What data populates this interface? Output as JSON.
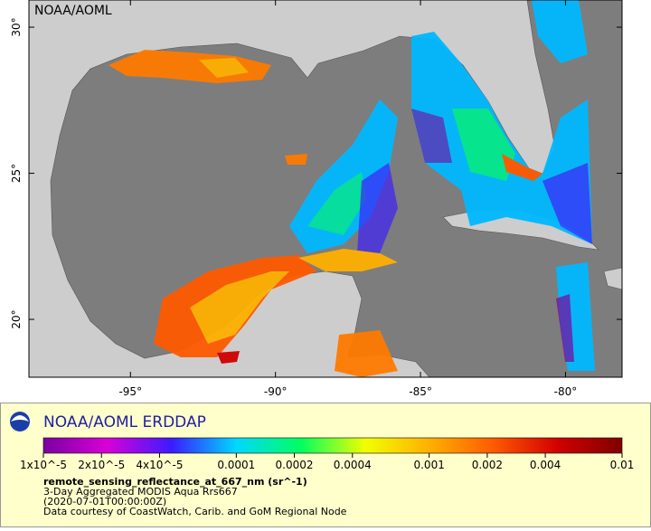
{
  "map": {
    "corner_label": "NOAA/AOML",
    "xlim": [
      -98.5,
      -78.05
    ],
    "ylim": [
      18.02,
      30.93
    ],
    "xticks": [
      {
        "value": -95,
        "label": "-95°"
      },
      {
        "value": -90,
        "label": "-90°"
      },
      {
        "value": -85,
        "label": "-85°"
      },
      {
        "value": -80,
        "label": "-80°"
      }
    ],
    "yticks": [
      {
        "value": 20,
        "label": "20°"
      },
      {
        "value": 25,
        "label": "25°"
      },
      {
        "value": 30,
        "label": "30°"
      }
    ]
  },
  "legend": {
    "brand": "NOAA/AOML ERDDAP",
    "colorbar": {
      "log_scale": true,
      "lim": [
        1e-05,
        0.01
      ],
      "colors": [
        "#7a00a0",
        "#d800d8",
        "#3a1cff",
        "#00d8ff",
        "#00ff60",
        "#f0ff00",
        "#ffb000",
        "#ff5a00",
        "#d00000",
        "#800000"
      ],
      "ticks": [
        {
          "value": 1e-05,
          "label": "1x10^-5"
        },
        {
          "value": 2e-05,
          "label": "2x10^-5"
        },
        {
          "value": 4e-05,
          "label": "4x10^-5"
        },
        {
          "value": 0.0001,
          "label": "0.0001"
        },
        {
          "value": 0.0002,
          "label": "0.0002"
        },
        {
          "value": 0.0004,
          "label": "0.0004"
        },
        {
          "value": 0.001,
          "label": "0.001"
        },
        {
          "value": 0.002,
          "label": "0.002"
        },
        {
          "value": 0.004,
          "label": "0.004"
        },
        {
          "value": 0.01,
          "label": "0.01"
        }
      ]
    },
    "variable": "remote_sensing_reflectance_at_667_nm (sr^-1)",
    "dataset": "3-Day Aggregated MODIS Aqua Rrs667",
    "time": "(2020-07-01T00:00:00Z)",
    "credit": "Data courtesy of CoastWatch, Carib. and GoM Regional Node"
  }
}
